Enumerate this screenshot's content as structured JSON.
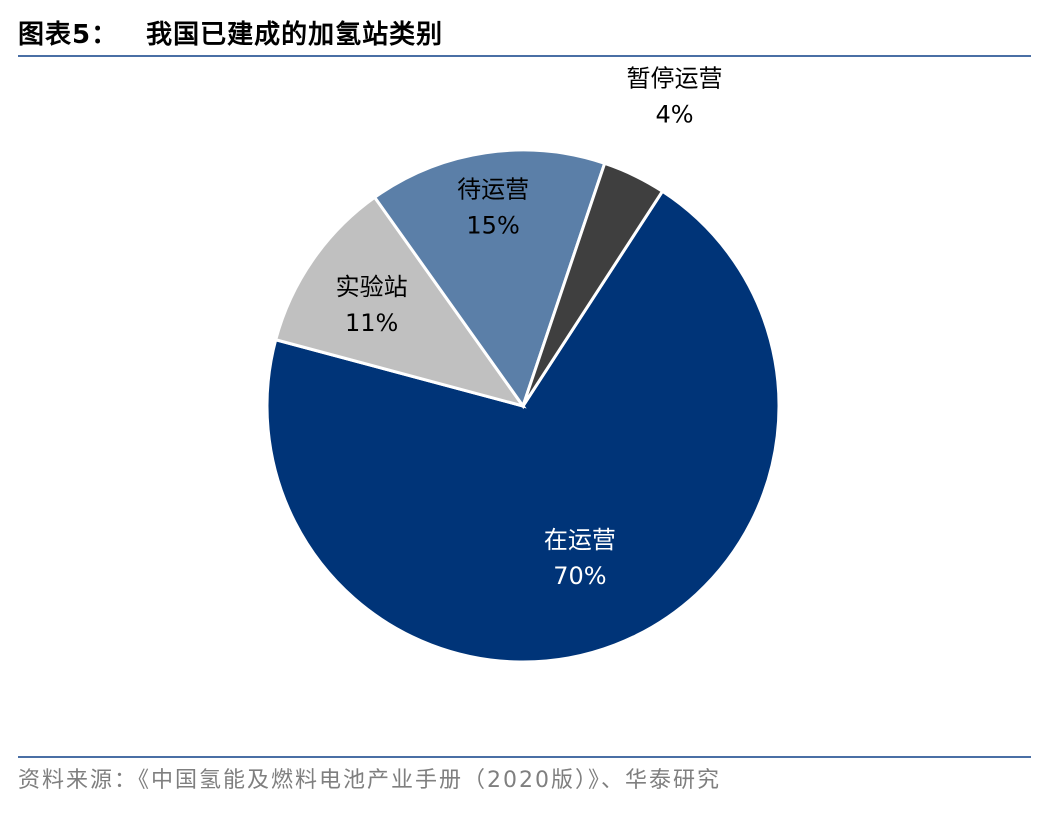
{
  "header": {
    "figure_label": "图表5：",
    "title": "我国已建成的加氢站类别"
  },
  "footer": {
    "source": "资料来源：《中国氢能及燃料电池产业手册（2020版）》、华泰研究"
  },
  "chart_data": {
    "type": "pie",
    "slices": [
      {
        "name": "在运营",
        "value": 70,
        "label": "70%",
        "color": "#003478",
        "text_color": "#ffffff"
      },
      {
        "name": "实验站",
        "value": 11,
        "label": "11%",
        "color": "#c0c0c0",
        "text_color": "#000000"
      },
      {
        "name": "待运营",
        "value": 15,
        "label": "15%",
        "color": "#5b7fa8",
        "text_color": "#000000"
      },
      {
        "name": "暂停运营",
        "value": 4,
        "label": "4%",
        "color": "#3f3f3f",
        "text_color": "#000000"
      }
    ]
  }
}
